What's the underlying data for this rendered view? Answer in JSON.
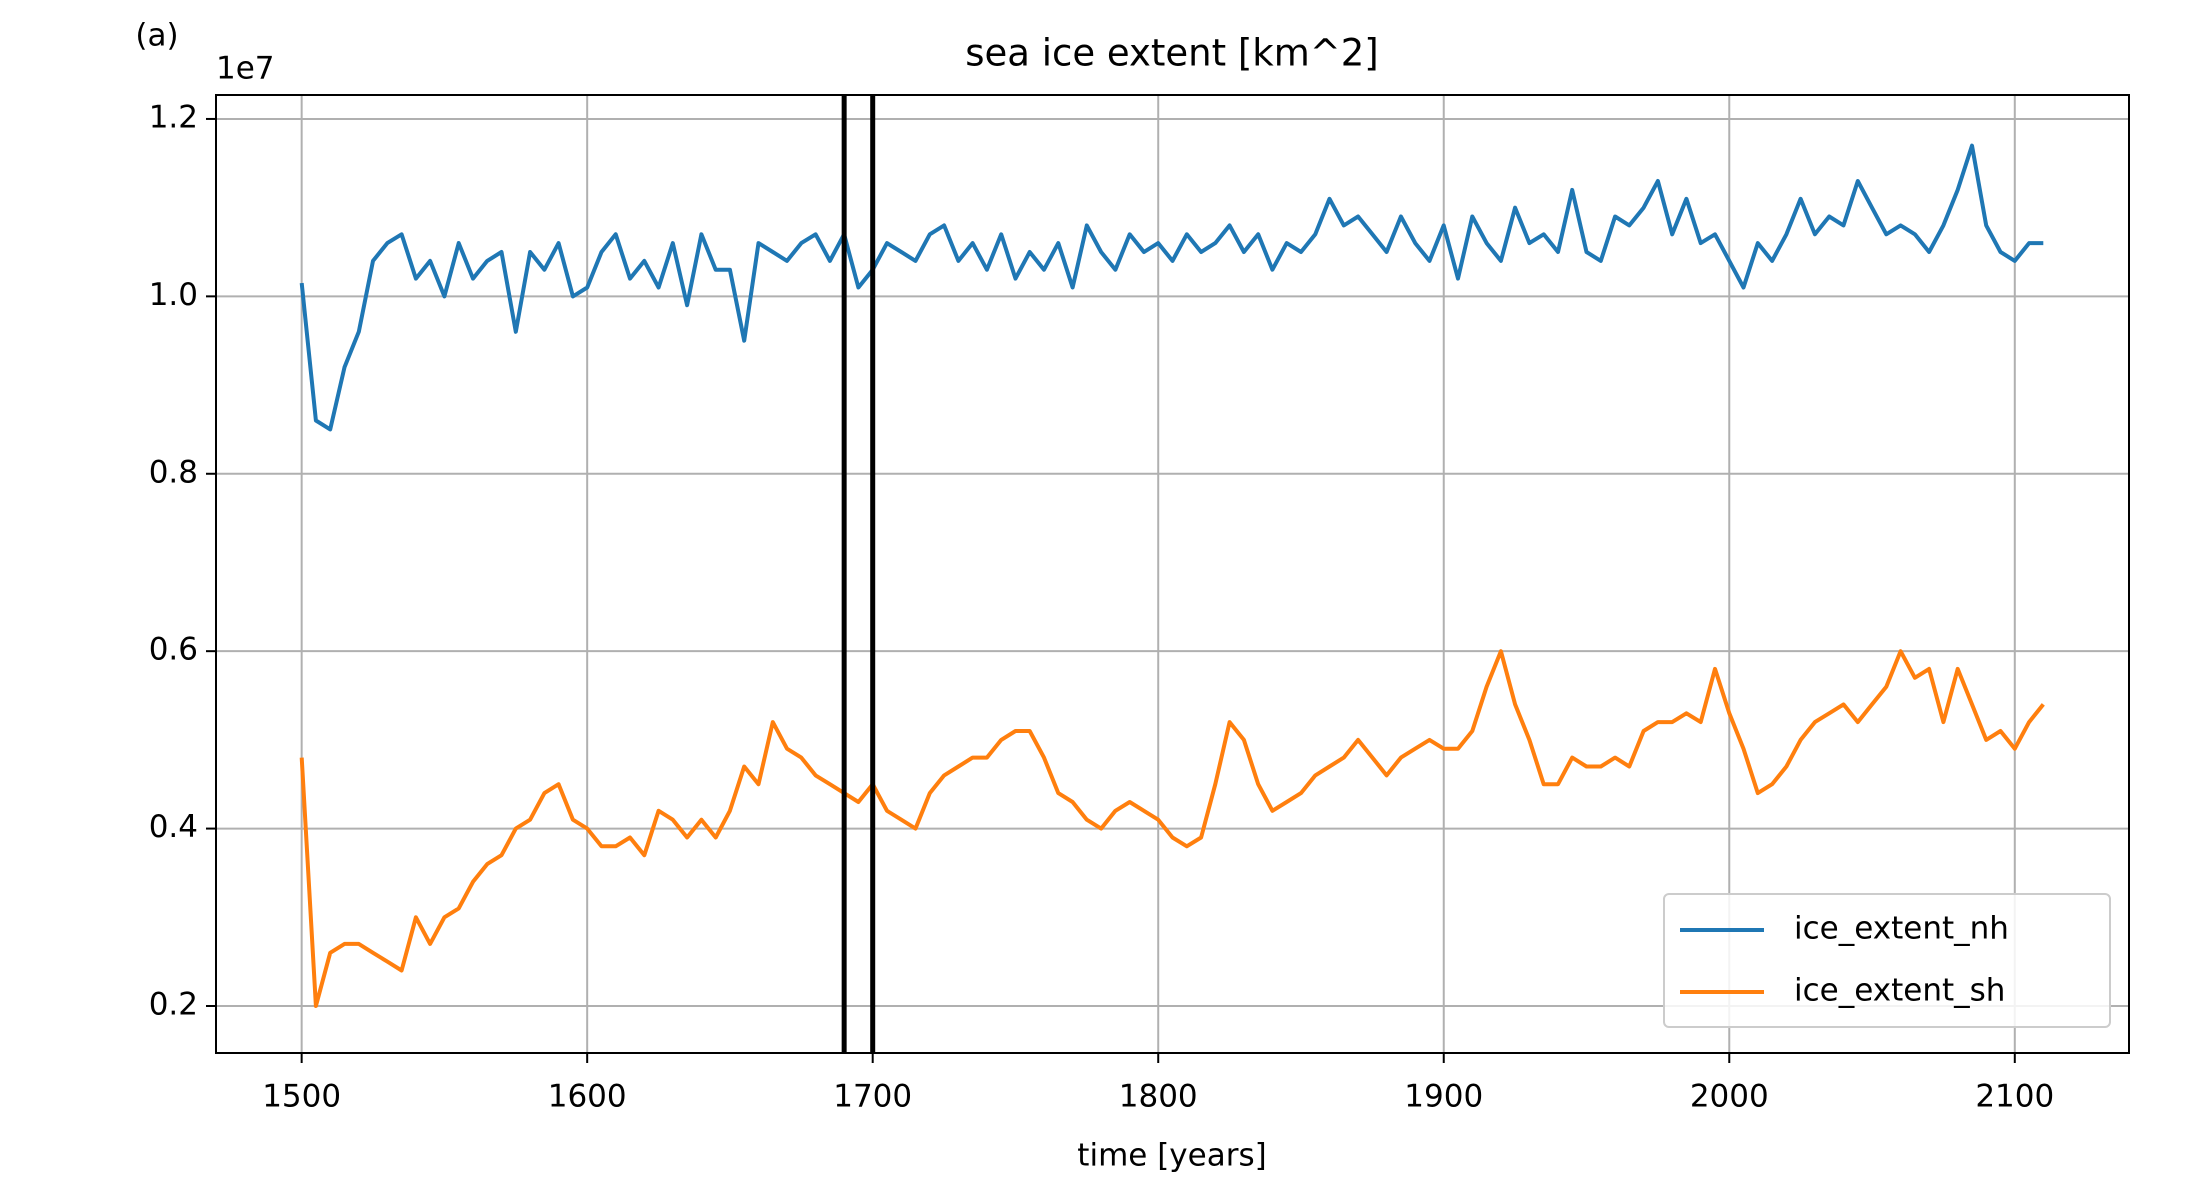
{
  "chart_data": {
    "type": "line",
    "title": "sea ice extent [km^2]",
    "panel_label": "(a)",
    "y_offset_label": "1e7",
    "xlabel": "time [years]",
    "xlim": [
      1470,
      2140
    ],
    "xticks": [
      1500,
      1600,
      1700,
      1800,
      1900,
      2000,
      2100
    ],
    "ylim": [
      0.147,
      1.227
    ],
    "yticks": [
      0.2,
      0.4,
      0.6,
      0.8,
      {
        "value": 1,
        "label": "1.0"
      },
      1.2
    ],
    "grid": true,
    "legend": "lower right",
    "vlines": [
      1690,
      1700
    ],
    "vline_color": "#000000",
    "x": [
      1500,
      1505,
      1510,
      1515,
      1520,
      1525,
      1530,
      1535,
      1540,
      1545,
      1550,
      1555,
      1560,
      1565,
      1570,
      1575,
      1580,
      1585,
      1590,
      1595,
      1600,
      1605,
      1610,
      1615,
      1620,
      1625,
      1630,
      1635,
      1640,
      1645,
      1650,
      1655,
      1660,
      1665,
      1670,
      1675,
      1680,
      1685,
      1690,
      1695,
      1700,
      1705,
      1710,
      1715,
      1720,
      1725,
      1730,
      1735,
      1740,
      1745,
      1750,
      1755,
      1760,
      1765,
      1770,
      1775,
      1780,
      1785,
      1790,
      1795,
      1800,
      1805,
      1810,
      1815,
      1820,
      1825,
      1830,
      1835,
      1840,
      1845,
      1850,
      1855,
      1860,
      1865,
      1870,
      1875,
      1880,
      1885,
      1890,
      1895,
      1900,
      1905,
      1910,
      1915,
      1920,
      1925,
      1930,
      1935,
      1940,
      1945,
      1950,
      1955,
      1960,
      1965,
      1970,
      1975,
      1980,
      1985,
      1990,
      1995,
      2000,
      2005,
      2010,
      2015,
      2020,
      2025,
      2030,
      2035,
      2040,
      2045,
      2050,
      2055,
      2060,
      2065,
      2070,
      2075,
      2080,
      2085,
      2090,
      2095,
      2100,
      2105,
      2110
    ],
    "series": [
      {
        "name": "ice_extent_nh",
        "color": "#1f77b4",
        "values": [
          1.015,
          0.86,
          0.85,
          0.92,
          0.96,
          1.04,
          1.06,
          1.07,
          1.02,
          1.04,
          1.0,
          1.06,
          1.02,
          1.04,
          1.05,
          0.96,
          1.05,
          1.03,
          1.06,
          1.0,
          1.01,
          1.05,
          1.07,
          1.02,
          1.04,
          1.01,
          1.06,
          0.99,
          1.07,
          1.03,
          1.03,
          0.95,
          1.06,
          1.05,
          1.04,
          1.06,
          1.07,
          1.04,
          1.07,
          1.01,
          1.03,
          1.06,
          1.05,
          1.04,
          1.07,
          1.08,
          1.04,
          1.06,
          1.03,
          1.07,
          1.02,
          1.05,
          1.03,
          1.06,
          1.01,
          1.08,
          1.05,
          1.03,
          1.07,
          1.05,
          1.06,
          1.04,
          1.07,
          1.05,
          1.06,
          1.08,
          1.05,
          1.07,
          1.03,
          1.06,
          1.05,
          1.07,
          1.11,
          1.08,
          1.09,
          1.07,
          1.05,
          1.09,
          1.06,
          1.04,
          1.08,
          1.02,
          1.09,
          1.06,
          1.04,
          1.1,
          1.06,
          1.07,
          1.05,
          1.12,
          1.05,
          1.04,
          1.09,
          1.08,
          1.1,
          1.13,
          1.07,
          1.11,
          1.06,
          1.07,
          1.04,
          1.01,
          1.06,
          1.04,
          1.07,
          1.11,
          1.07,
          1.09,
          1.08,
          1.13,
          1.1,
          1.07,
          1.08,
          1.07,
          1.05,
          1.08,
          1.12,
          1.17,
          1.08,
          1.05,
          1.04,
          1.06,
          1.06
        ]
      },
      {
        "name": "ice_extent_sh",
        "color": "#ff7f0e",
        "values": [
          0.48,
          0.2,
          0.26,
          0.27,
          0.27,
          0.26,
          0.25,
          0.24,
          0.3,
          0.27,
          0.3,
          0.31,
          0.34,
          0.36,
          0.37,
          0.4,
          0.41,
          0.44,
          0.45,
          0.41,
          0.4,
          0.38,
          0.38,
          0.39,
          0.37,
          0.42,
          0.41,
          0.39,
          0.41,
          0.39,
          0.42,
          0.47,
          0.45,
          0.52,
          0.49,
          0.48,
          0.46,
          0.45,
          0.44,
          0.43,
          0.45,
          0.42,
          0.41,
          0.4,
          0.44,
          0.46,
          0.47,
          0.48,
          0.48,
          0.5,
          0.51,
          0.51,
          0.48,
          0.44,
          0.43,
          0.41,
          0.4,
          0.42,
          0.43,
          0.42,
          0.41,
          0.39,
          0.38,
          0.39,
          0.45,
          0.52,
          0.5,
          0.45,
          0.42,
          0.43,
          0.44,
          0.46,
          0.47,
          0.48,
          0.5,
          0.48,
          0.46,
          0.48,
          0.49,
          0.5,
          0.49,
          0.49,
          0.51,
          0.56,
          0.6,
          0.54,
          0.5,
          0.45,
          0.45,
          0.48,
          0.47,
          0.47,
          0.48,
          0.47,
          0.51,
          0.52,
          0.52,
          0.53,
          0.52,
          0.58,
          0.53,
          0.49,
          0.44,
          0.45,
          0.47,
          0.5,
          0.52,
          0.53,
          0.54,
          0.52,
          0.54,
          0.56,
          0.6,
          0.57,
          0.58,
          0.52,
          0.58,
          0.54,
          0.5,
          0.51,
          0.49,
          0.52,
          0.54
        ]
      }
    ]
  }
}
